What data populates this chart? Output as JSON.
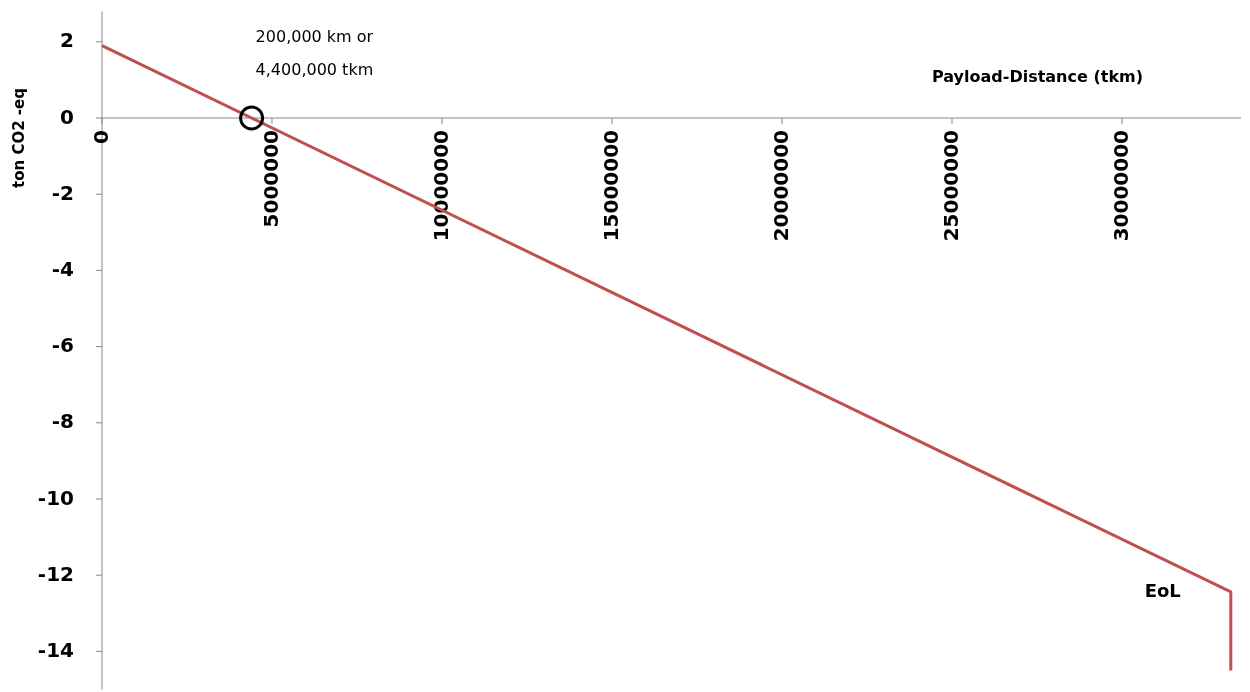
{
  "chart_data": {
    "type": "line",
    "xlabel": "Payload-Distance (tkm)",
    "ylabel": "ton CO2 -eq",
    "xlim": [
      0,
      33500000
    ],
    "ylim": [
      -15,
      2.8
    ],
    "xticks": [
      0,
      5000000,
      10000000,
      15000000,
      20000000,
      25000000,
      30000000
    ],
    "yticks": [
      2,
      0,
      -2,
      -4,
      -6,
      -8,
      -10,
      -12,
      -14
    ],
    "grid": false,
    "series": [
      {
        "color": "#c0504d",
        "x": [
          0,
          33200000,
          33200000
        ],
        "values": [
          1.9,
          -12.44,
          -14.5
        ],
        "marker": "none"
      },
      {
        "type": "scatter",
        "color": "#000000",
        "x": [
          4400000
        ],
        "values": [
          0
        ],
        "marker": "circle"
      }
    ],
    "annotations": [
      {
        "text": "200,000 km or\n4,400,000 tkm",
        "x": 4400000,
        "y": 0
      },
      {
        "text": "EoL",
        "x": 33200000,
        "y": -12.44
      }
    ]
  }
}
